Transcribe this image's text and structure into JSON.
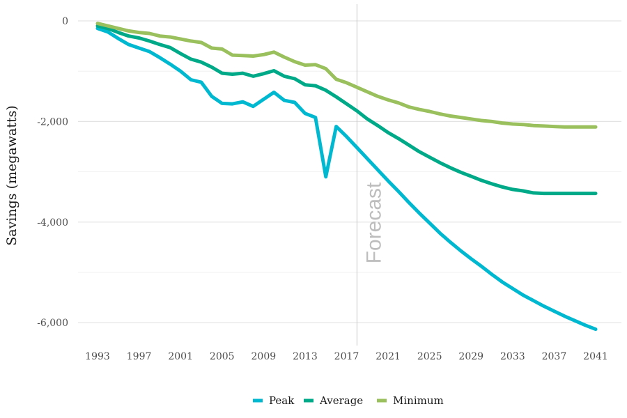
{
  "chart_data": {
    "type": "line",
    "ylabel": "Savings (megawatts)",
    "xlabel": "",
    "xlim": [
      1993,
      2041
    ],
    "ylim": [
      -6400,
      300
    ],
    "x_ticks": [
      1993,
      1997,
      2001,
      2005,
      2009,
      2013,
      2017,
      2021,
      2025,
      2029,
      2033,
      2037,
      2041
    ],
    "y_ticks": [
      0,
      -2000,
      -4000,
      -6000
    ],
    "y_tick_labels": [
      "0",
      "-2,000",
      "-4,000",
      "-6,000"
    ],
    "y_minor_gridlines": [
      -1000,
      -3000,
      -5000
    ],
    "grid": true,
    "legend_position": "bottom",
    "annotation": {
      "text": "Forecast",
      "x": 2018
    },
    "x": [
      1993,
      1994,
      1995,
      1996,
      1997,
      1998,
      1999,
      2000,
      2001,
      2002,
      2003,
      2004,
      2005,
      2006,
      2007,
      2008,
      2009,
      2010,
      2011,
      2012,
      2013,
      2014,
      2015,
      2016,
      2017,
      2018,
      2019,
      2020,
      2021,
      2022,
      2023,
      2024,
      2025,
      2026,
      2027,
      2028,
      2029,
      2030,
      2031,
      2032,
      2033,
      2034,
      2035,
      2036,
      2037,
      2038,
      2039,
      2040,
      2041
    ],
    "series": [
      {
        "name": "Peak",
        "color": "#00b8d0",
        "values": [
          -150,
          -220,
          -350,
          -470,
          -540,
          -610,
          -730,
          -860,
          -1000,
          -1170,
          -1220,
          -1500,
          -1640,
          -1650,
          -1610,
          -1700,
          -1560,
          -1420,
          -1580,
          -1620,
          -1840,
          -1920,
          -3100,
          -2100,
          -2300,
          -2520,
          -2740,
          -2960,
          -3180,
          -3390,
          -3610,
          -3820,
          -4020,
          -4220,
          -4400,
          -4570,
          -4730,
          -4880,
          -5040,
          -5190,
          -5320,
          -5450,
          -5560,
          -5670,
          -5770,
          -5870,
          -5960,
          -6050,
          -6130
        ]
      },
      {
        "name": "Average",
        "color": "#00aa88",
        "values": [
          -100,
          -150,
          -230,
          -300,
          -340,
          -400,
          -470,
          -530,
          -650,
          -760,
          -820,
          -920,
          -1040,
          -1060,
          -1040,
          -1100,
          -1050,
          -990,
          -1100,
          -1150,
          -1270,
          -1290,
          -1380,
          -1510,
          -1650,
          -1790,
          -1950,
          -2080,
          -2220,
          -2340,
          -2470,
          -2600,
          -2710,
          -2820,
          -2920,
          -3010,
          -3090,
          -3170,
          -3240,
          -3300,
          -3350,
          -3380,
          -3420,
          -3430,
          -3430,
          -3430,
          -3430,
          -3430,
          -3430
        ]
      },
      {
        "name": "Minimum",
        "color": "#99c05c",
        "values": [
          -50,
          -100,
          -150,
          -200,
          -230,
          -250,
          -300,
          -320,
          -360,
          -400,
          -430,
          -540,
          -560,
          -680,
          -690,
          -700,
          -670,
          -620,
          -720,
          -810,
          -880,
          -870,
          -950,
          -1160,
          -1230,
          -1320,
          -1410,
          -1500,
          -1570,
          -1630,
          -1710,
          -1760,
          -1800,
          -1850,
          -1890,
          -1920,
          -1950,
          -1980,
          -2000,
          -2030,
          -2050,
          -2060,
          -2080,
          -2090,
          -2100,
          -2110,
          -2110,
          -2110,
          -2110
        ]
      }
    ]
  }
}
